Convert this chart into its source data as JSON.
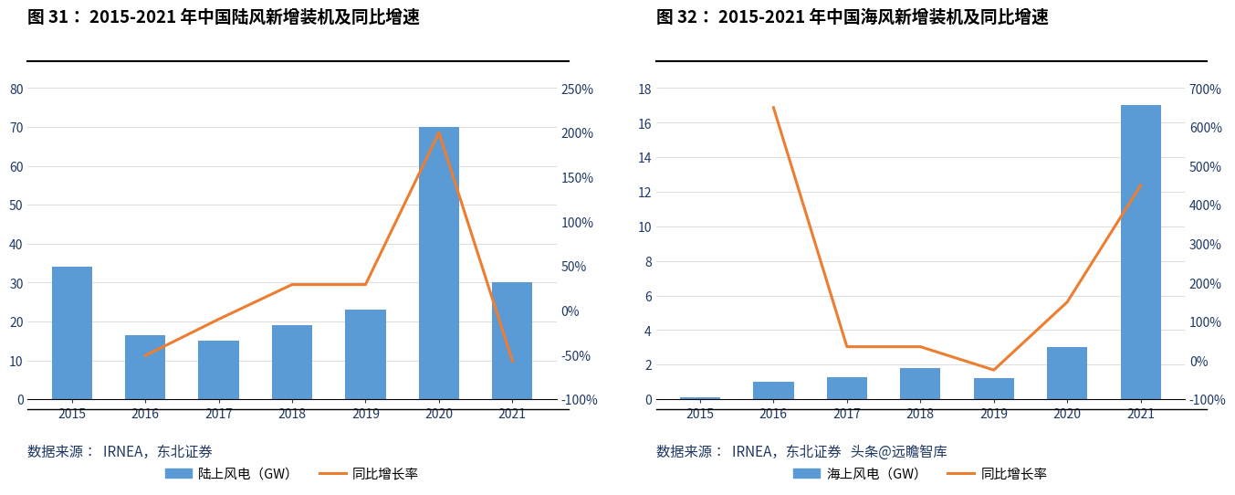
{
  "chart1": {
    "title": "图 31： 2015-2021 年中国陆风新增装机及同比增速",
    "years": [
      2015,
      2016,
      2017,
      2018,
      2019,
      2020,
      2021
    ],
    "bar_values": [
      34,
      16.5,
      15,
      19,
      23,
      70,
      30
    ],
    "line_values": [
      null,
      -0.51,
      -0.1,
      0.29,
      0.29,
      2.0,
      -0.57
    ],
    "bar_color": "#5B9BD5",
    "line_color": "#ED7D31",
    "ylim_left": [
      0,
      80
    ],
    "ylim_right": [
      -1.0,
      2.5
    ],
    "yticks_left": [
      0,
      10,
      20,
      30,
      40,
      50,
      60,
      70,
      80
    ],
    "yticks_right": [
      -1.0,
      -0.5,
      0.0,
      0.5,
      1.0,
      1.5,
      2.0,
      2.5
    ],
    "ytick_labels_right": [
      "-100%",
      "-50%",
      "0%",
      "50%",
      "100%",
      "150%",
      "200%",
      "250%"
    ],
    "bar_label": "陆上风电（GW）",
    "line_label": "同比增长率",
    "source": "数据来源：  IRNEA，东北证券"
  },
  "chart2": {
    "title": "图 32： 2015-2021 年中国海风新增装机及同比增速",
    "years": [
      2015,
      2016,
      2017,
      2018,
      2019,
      2020,
      2021
    ],
    "bar_values": [
      0.1,
      1.0,
      1.3,
      1.8,
      1.2,
      3.0,
      17.0
    ],
    "line_values": [
      null,
      6.5,
      0.35,
      0.35,
      -0.25,
      1.5,
      4.5
    ],
    "bar_color": "#5B9BD5",
    "line_color": "#ED7D31",
    "ylim_left": [
      0,
      18
    ],
    "ylim_right": [
      -1.0,
      7.0
    ],
    "yticks_left": [
      0,
      2,
      4,
      6,
      8,
      10,
      12,
      14,
      16,
      18
    ],
    "yticks_right": [
      -1.0,
      0.0,
      1.0,
      2.0,
      3.0,
      4.0,
      5.0,
      6.0,
      7.0
    ],
    "ytick_labels_right": [
      "-100%",
      "0%",
      "100%",
      "200%",
      "300%",
      "400%",
      "500%",
      "600%",
      "700%"
    ],
    "bar_label": "海上风电（GW）",
    "line_label": "同比增长率",
    "source": "数据来源：  IRNEA，东北证券   头条@远瞻智库"
  },
  "background_color": "#FFFFFF",
  "title_color": "#1F3864",
  "tick_color": "#1F3864",
  "title_fontsize": 13.5,
  "tick_fontsize": 10,
  "legend_fontsize": 10.5,
  "source_fontsize": 11
}
